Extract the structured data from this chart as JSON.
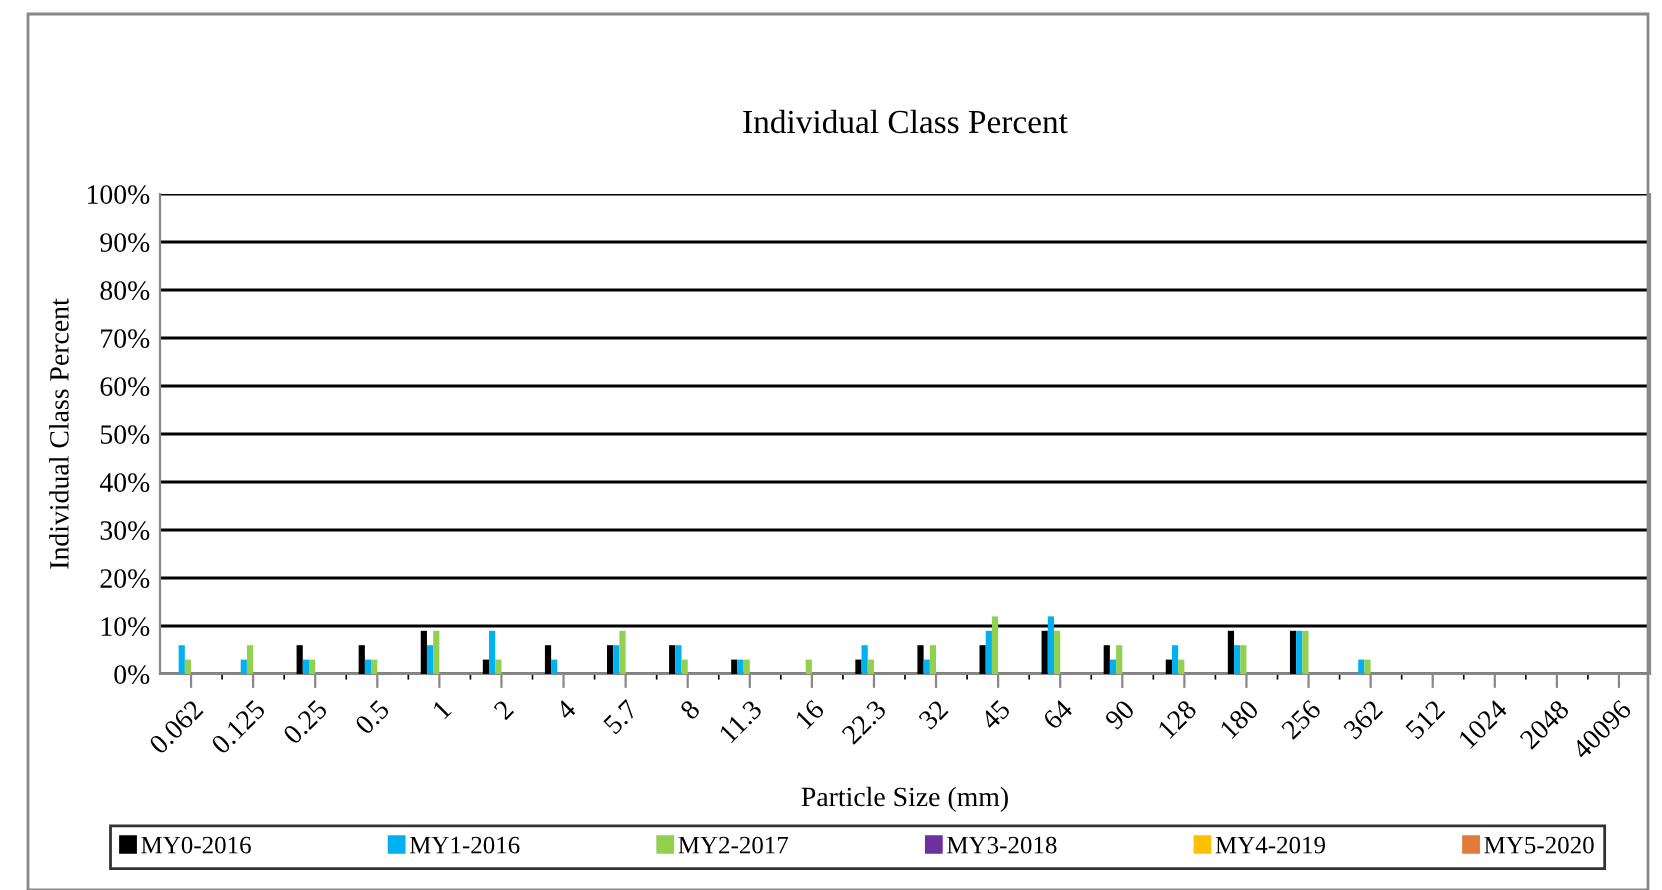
{
  "chart_data": {
    "type": "bar",
    "title": "Individual Class Percent",
    "xlabel": "Particle Size (mm)",
    "ylabel": "Individual Class Percent",
    "categories": [
      "0.062",
      "0.125",
      "0.25",
      "0.5",
      "1",
      "2",
      "4",
      "5.7",
      "8",
      "11.3",
      "16",
      "22.3",
      "32",
      "45",
      "64",
      "90",
      "128",
      "180",
      "256",
      "362",
      "512",
      "1024",
      "2048",
      "40096"
    ],
    "series": [
      {
        "name": "MY0-2016",
        "color": "#000000",
        "values": [
          0,
          0,
          6,
          6,
          9,
          3,
          6,
          6,
          6,
          3,
          0,
          3,
          6,
          6,
          9,
          6,
          3,
          9,
          9,
          0,
          0,
          0,
          0,
          0
        ]
      },
      {
        "name": "MY1-2016",
        "color": "#00b0f0",
        "values": [
          6,
          3,
          3,
          3,
          6,
          9,
          3,
          6,
          6,
          3,
          0,
          6,
          3,
          9,
          12,
          3,
          6,
          6,
          9,
          3,
          0,
          0,
          0,
          0
        ]
      },
      {
        "name": "MY2-2017",
        "color": "#92d050",
        "values": [
          3,
          6,
          3,
          3,
          9,
          3,
          0,
          9,
          3,
          3,
          3,
          3,
          6,
          12,
          9,
          6,
          3,
          6,
          9,
          3,
          0,
          0,
          0,
          0
        ]
      },
      {
        "name": "MY3-2018",
        "color": "#7030a0",
        "values": [
          0,
          0,
          0,
          0,
          0,
          0,
          0,
          0,
          0,
          0,
          0,
          0,
          0,
          0,
          0,
          0,
          0,
          0,
          0,
          0,
          0,
          0,
          0,
          0
        ]
      },
      {
        "name": "MY4-2019",
        "color": "#ffc000",
        "values": [
          0,
          0,
          0,
          0,
          0,
          0,
          0,
          0,
          0,
          0,
          0,
          0,
          0,
          0,
          0,
          0,
          0,
          0,
          0,
          0,
          0,
          0,
          0,
          0
        ]
      },
      {
        "name": "MY5-2020",
        "color": "#e07b39",
        "values": [
          0,
          0,
          0,
          0,
          0,
          0,
          0,
          0,
          0,
          0,
          0,
          0,
          0,
          0,
          0,
          0,
          0,
          0,
          0,
          0,
          0,
          0,
          0,
          0
        ]
      }
    ],
    "ylim": [
      0,
      100
    ],
    "yticks": [
      {
        "value": 0,
        "label": "0%"
      },
      {
        "value": 10,
        "label": "10%"
      },
      {
        "value": 20,
        "label": "20%"
      },
      {
        "value": 30,
        "label": "30%"
      },
      {
        "value": 40,
        "label": "40%"
      },
      {
        "value": 50,
        "label": "50%"
      },
      {
        "value": 60,
        "label": "60%"
      },
      {
        "value": 70,
        "label": "70%"
      },
      {
        "value": 80,
        "label": "80%"
      },
      {
        "value": 90,
        "label": "90%"
      },
      {
        "value": 100,
        "label": "100%"
      }
    ],
    "grid": "y",
    "legend": "bottom"
  }
}
